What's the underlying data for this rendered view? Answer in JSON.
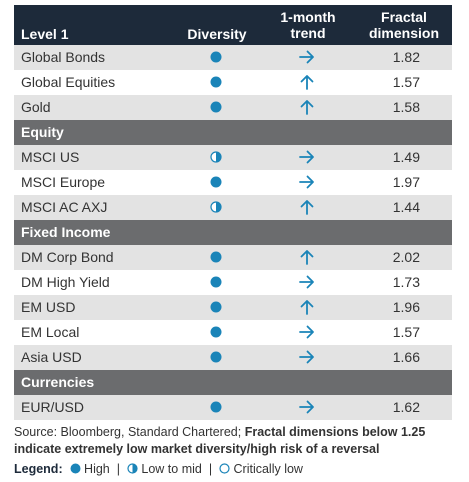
{
  "header": {
    "col1": "Level 1",
    "col2": "Diversity",
    "col3_line1": "1-month",
    "col3_line2": "trend",
    "col4_line1": "Fractal",
    "col4_line2": "dimension"
  },
  "rows": [
    {
      "type": "data",
      "label": "Global Bonds",
      "diversity": "high",
      "trend": "right",
      "value": "1.82"
    },
    {
      "type": "data",
      "label": "Global Equities",
      "diversity": "high",
      "trend": "up",
      "value": "1.57"
    },
    {
      "type": "data",
      "label": "Gold",
      "diversity": "high",
      "trend": "up",
      "value": "1.58"
    },
    {
      "type": "section",
      "label": "Equity"
    },
    {
      "type": "data",
      "label": "MSCI US",
      "diversity": "low-to-mid",
      "trend": "right",
      "value": "1.49"
    },
    {
      "type": "data",
      "label": "MSCI Europe",
      "diversity": "high",
      "trend": "right",
      "value": "1.97"
    },
    {
      "type": "data",
      "label": "MSCI AC AXJ",
      "diversity": "low-to-mid",
      "trend": "up",
      "value": "1.44"
    },
    {
      "type": "section",
      "label": "Fixed Income"
    },
    {
      "type": "data",
      "label": "DM Corp Bond",
      "diversity": "high",
      "trend": "up",
      "value": "2.02"
    },
    {
      "type": "data",
      "label": "DM High Yield",
      "diversity": "high",
      "trend": "right",
      "value": "1.73"
    },
    {
      "type": "data",
      "label": "EM USD",
      "diversity": "high",
      "trend": "up",
      "value": "1.96"
    },
    {
      "type": "data",
      "label": "EM Local",
      "diversity": "high",
      "trend": "right",
      "value": "1.57"
    },
    {
      "type": "data",
      "label": "Asia USD",
      "diversity": "high",
      "trend": "right",
      "value": "1.66"
    },
    {
      "type": "section",
      "label": "Currencies"
    },
    {
      "type": "data",
      "label": "EUR/USD",
      "diversity": "high",
      "trend": "right",
      "value": "1.62"
    }
  ],
  "source": {
    "plain": "Source: Bloomberg, Standard Chartered; ",
    "bold": "Fractal dimensions below 1.25 indicate extremely low market diversity/high risk of a reversal"
  },
  "legend": {
    "title": "Legend:",
    "high": "High",
    "low_to_mid": "Low to mid",
    "critically_low": "Critically low",
    "separator": "|"
  },
  "colors": {
    "header_bg": "#1d2a3a",
    "section_bg": "#6b6c6e",
    "alt_row_bg": "#e3e3e3",
    "icon_teal": "#1a84b8",
    "text": "#333333"
  }
}
